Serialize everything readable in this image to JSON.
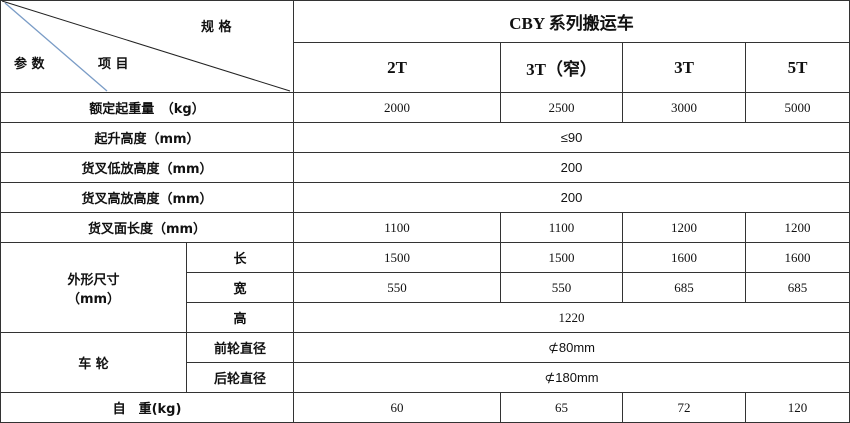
{
  "corner": {
    "spec": "规 格",
    "params": "参 数",
    "items": "项 目"
  },
  "title": "CBY 系列搬运车",
  "models": [
    "2T",
    "3T（窄）",
    "3T",
    "5T"
  ],
  "rows": {
    "rated_load": {
      "label": "额定起重量　（kg）",
      "values": [
        "2000",
        "2500",
        "3000",
        "5000"
      ]
    },
    "lift_height": {
      "label": "起升高度（mm）",
      "value": "≤90"
    },
    "fork_low": {
      "label": "货叉低放高度（mm）",
      "value": "200"
    },
    "fork_high": {
      "label": "货叉高放高度（mm）",
      "value": "200"
    },
    "fork_length": {
      "label": "货叉面长度（mm）",
      "values": [
        "1100",
        "1100",
        "1200",
        "1200"
      ]
    },
    "dimensions": {
      "label": "外形尺寸",
      "unit": "（mm）",
      "length": {
        "label": "长",
        "values": [
          "1500",
          "1500",
          "1600",
          "1600"
        ]
      },
      "width": {
        "label": "宽",
        "values": [
          "550",
          "550",
          "685",
          "685"
        ]
      },
      "height": {
        "label": "高",
        "value": "1220"
      }
    },
    "wheels": {
      "label": "车 轮",
      "front": {
        "label": "前轮直径",
        "value": "⊄80mm"
      },
      "rear": {
        "label": "后轮直径",
        "value": "⊄180mm"
      }
    },
    "weight": {
      "label": "自　重(kg)",
      "values": [
        "60",
        "65",
        "72",
        "120"
      ]
    }
  },
  "colors": {
    "border": "#333333",
    "diagonal_blue": "#7a9cc6"
  }
}
